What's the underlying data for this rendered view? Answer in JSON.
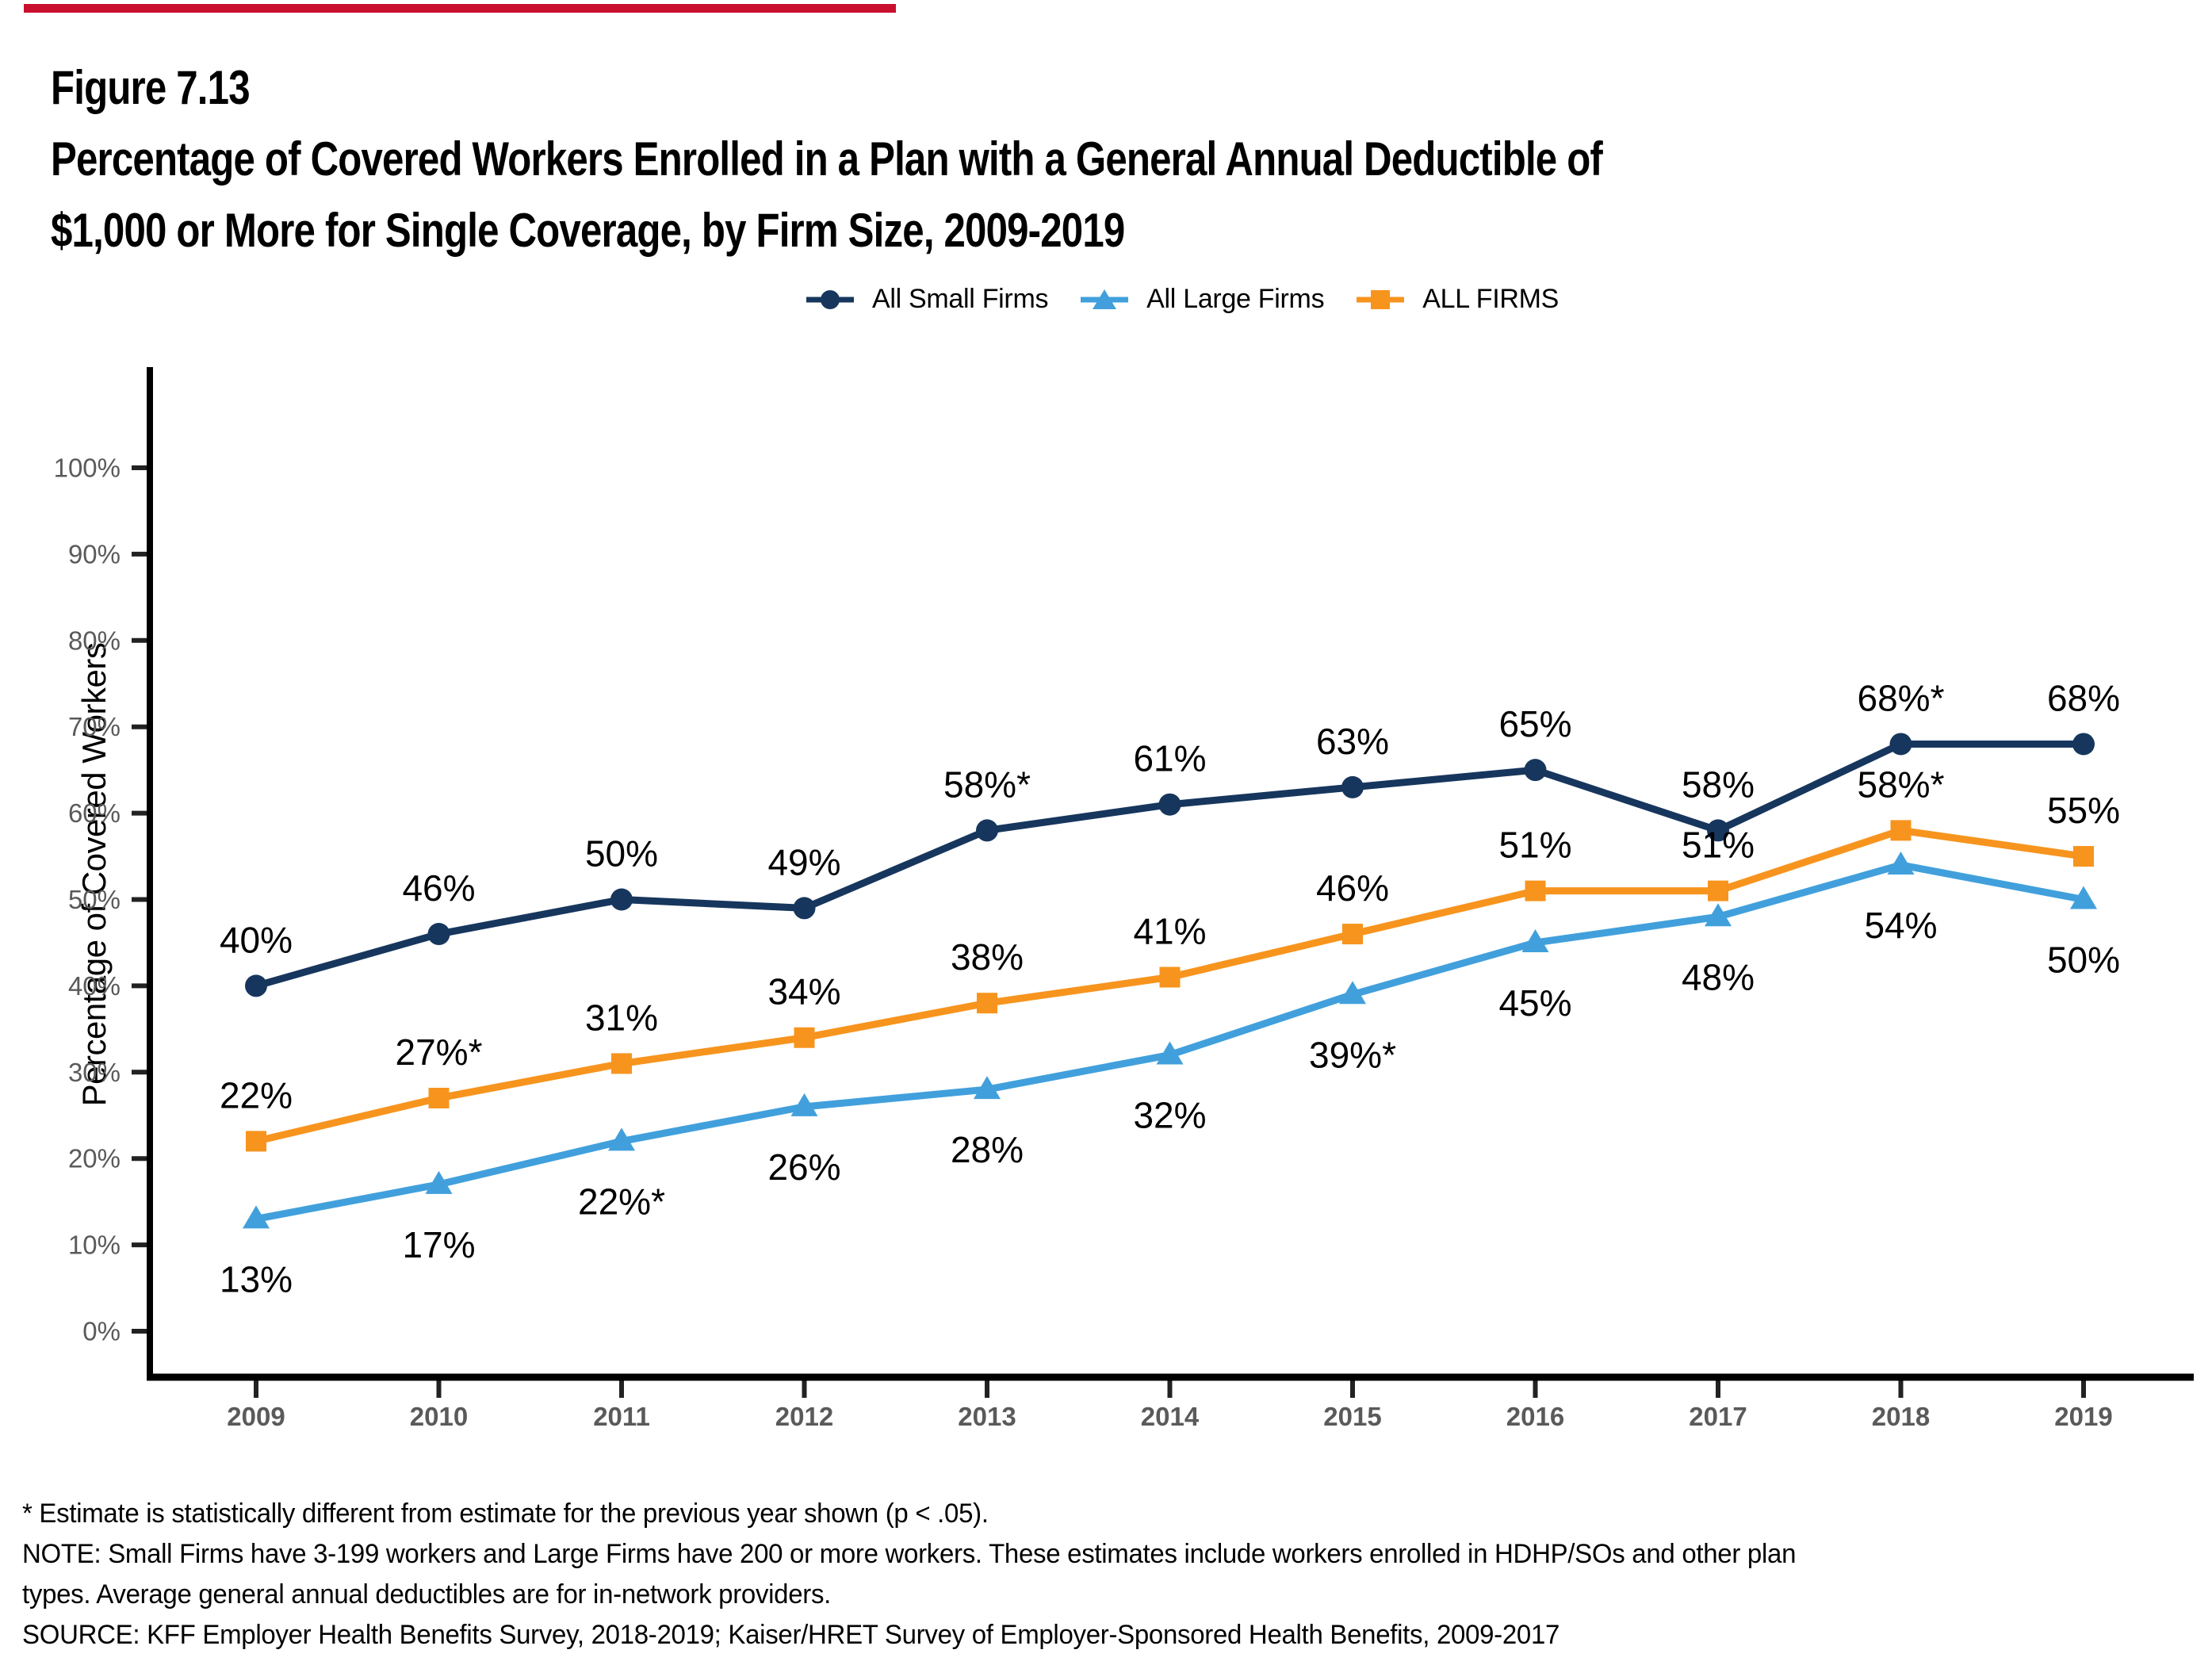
{
  "page": {
    "background": "#FFFFFF",
    "top_strip_color": "#C8102E"
  },
  "header": {
    "figure_label": "Figure 7.13",
    "title_line1": "Percentage of Covered Workers Enrolled in a Plan with a General Annual Deductible of",
    "title_line2": "$1,000 or More for Single Coverage, by Firm Size, 2009-2019"
  },
  "chart_data": {
    "type": "line",
    "categories": [
      "2009",
      "2010",
      "2011",
      "2012",
      "2013",
      "2014",
      "2015",
      "2016",
      "2017",
      "2018",
      "2019"
    ],
    "series": [
      {
        "name": "All Small Firms",
        "color": "#17365D",
        "marker": "circle",
        "label_position": "above",
        "values": [
          40,
          46,
          50,
          49,
          58,
          61,
          63,
          65,
          58,
          68,
          68
        ],
        "labels": [
          "40%",
          "46%",
          "50%",
          "49%",
          "58%*",
          "61%",
          "63%",
          "65%",
          "58%",
          "68%*",
          "68%"
        ]
      },
      {
        "name": "All Large Firms",
        "color": "#41A0DC",
        "marker": "triangle",
        "label_position": "below",
        "values": [
          13,
          17,
          22,
          26,
          28,
          32,
          39,
          45,
          48,
          54,
          50
        ],
        "labels": [
          "13%",
          "17%",
          "22%*",
          "26%",
          "28%",
          "32%",
          "39%*",
          "45%",
          "48%",
          "54%",
          "50%"
        ]
      },
      {
        "name": "ALL FIRMS",
        "color": "#F7941E",
        "marker": "square",
        "label_position": "above",
        "values": [
          22,
          27,
          31,
          34,
          38,
          41,
          46,
          51,
          51,
          58,
          55
        ],
        "labels": [
          "22%",
          "27%*",
          "31%",
          "34%",
          "38%",
          "41%",
          "46%",
          "51%",
          "51%",
          "58%*",
          "55%"
        ]
      }
    ],
    "ylabel": "Percentage of Covered Workers",
    "xlabel": "",
    "ylim": [
      0,
      100
    ],
    "ytick_step": 10,
    "ytick_suffix": "%",
    "grid": false,
    "legend_position": "top-center",
    "axis_text_color": "#5A5A5A",
    "data_label_color": "#000000"
  },
  "footnotes": {
    "line1": "* Estimate is statistically different from estimate for the previous year shown (p < .05).",
    "line2": "NOTE: Small Firms have 3-199 workers and Large Firms have 200 or more workers. These estimates include workers enrolled in HDHP/SOs and other plan",
    "line3": "types. Average general annual deductibles are for in-network providers.",
    "line4": "SOURCE: KFF Employer Health Benefits Survey, 2018-2019; Kaiser/HRET Survey of Employer-Sponsored Health Benefits, 2009-2017"
  }
}
